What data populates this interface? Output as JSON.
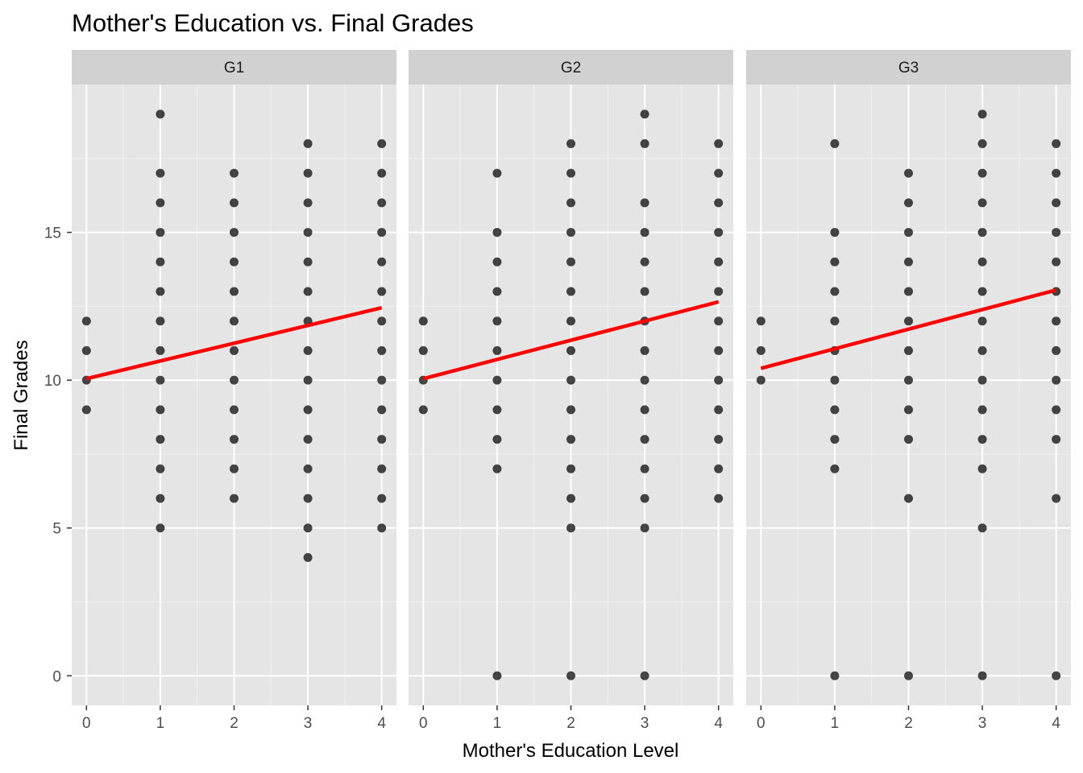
{
  "chart_data": {
    "type": "scatter",
    "title": "Mother's Education vs. Final Grades",
    "xlabel": "Mother's Education Level",
    "ylabel": "Final Grades",
    "xlim": [
      -0.2,
      4.2
    ],
    "ylim": [
      -1,
      20
    ],
    "x_ticks": [
      0,
      1,
      2,
      3,
      4
    ],
    "y_ticks": [
      0,
      5,
      10,
      15
    ],
    "grid": true,
    "legend": "none",
    "point_color": "#000000",
    "trend_color": "#ff0000",
    "panel_background": "#e5e5e5",
    "strip_background": "#d1d1d1",
    "facets": [
      {
        "name": "G1",
        "trend": {
          "x": [
            0,
            4
          ],
          "y": [
            10.05,
            12.45
          ]
        },
        "points": [
          {
            "x": 0,
            "y": [
              9,
              10,
              11,
              12
            ]
          },
          {
            "x": 1,
            "y": [
              5,
              6,
              7,
              8,
              9,
              10,
              11,
              12,
              13,
              14,
              15,
              16,
              17,
              19
            ]
          },
          {
            "x": 2,
            "y": [
              6,
              7,
              8,
              9,
              10,
              11,
              12,
              13,
              14,
              15,
              16,
              17
            ]
          },
          {
            "x": 3,
            "y": [
              4,
              5,
              6,
              7,
              8,
              9,
              10,
              11,
              12,
              13,
              14,
              15,
              16,
              17,
              18
            ]
          },
          {
            "x": 4,
            "y": [
              5,
              6,
              7,
              8,
              9,
              10,
              11,
              12,
              13,
              14,
              15,
              16,
              17,
              18
            ]
          }
        ]
      },
      {
        "name": "G2",
        "trend": {
          "x": [
            0,
            4
          ],
          "y": [
            10.05,
            12.65
          ]
        },
        "points": [
          {
            "x": 0,
            "y": [
              9,
              10,
              11,
              12
            ]
          },
          {
            "x": 1,
            "y": [
              0,
              7,
              8,
              9,
              10,
              11,
              12,
              13,
              14,
              15,
              17
            ]
          },
          {
            "x": 2,
            "y": [
              0,
              5,
              6,
              7,
              8,
              9,
              10,
              11,
              12,
              13,
              14,
              15,
              16,
              17,
              18
            ]
          },
          {
            "x": 3,
            "y": [
              0,
              5,
              6,
              7,
              8,
              9,
              10,
              11,
              12,
              13,
              14,
              15,
              16,
              18,
              19
            ]
          },
          {
            "x": 4,
            "y": [
              6,
              7,
              8,
              9,
              10,
              11,
              12,
              13,
              14,
              15,
              16,
              17,
              18
            ]
          }
        ]
      },
      {
        "name": "G3",
        "trend": {
          "x": [
            0,
            4
          ],
          "y": [
            10.4,
            13.05
          ]
        },
        "points": [
          {
            "x": 0,
            "y": [
              10,
              11,
              12
            ]
          },
          {
            "x": 1,
            "y": [
              0,
              7,
              8,
              9,
              10,
              11,
              12,
              13,
              14,
              15,
              18
            ]
          },
          {
            "x": 2,
            "y": [
              0,
              6,
              8,
              9,
              10,
              11,
              12,
              13,
              14,
              15,
              16,
              17
            ]
          },
          {
            "x": 3,
            "y": [
              0,
              5,
              7,
              8,
              9,
              10,
              11,
              12,
              13,
              14,
              15,
              16,
              17,
              18,
              19
            ]
          },
          {
            "x": 4,
            "y": [
              0,
              6,
              8,
              9,
              10,
              11,
              12,
              13,
              14,
              15,
              16,
              17,
              18
            ]
          }
        ]
      }
    ]
  }
}
